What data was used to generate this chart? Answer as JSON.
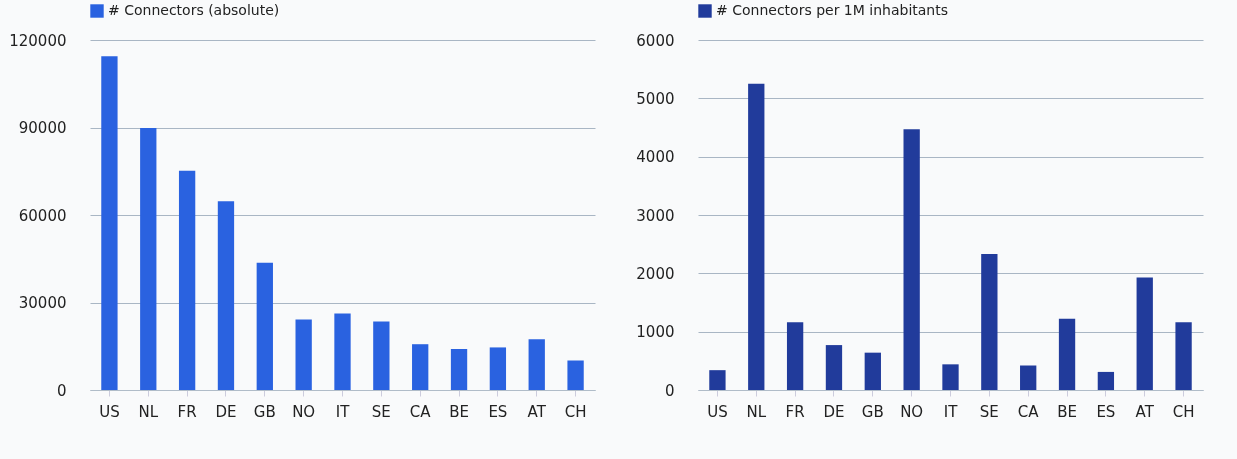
{
  "chart_data": [
    {
      "type": "bar",
      "categories": [
        "US",
        "NL",
        "FR",
        "DE",
        "GB",
        "NO",
        "IT",
        "SE",
        "CA",
        "BE",
        "ES",
        "AT",
        "CH"
      ],
      "series": [
        {
          "name": "# Connectors (absolute)",
          "color": "#2a62e0",
          "values": [
            114400,
            89800,
            75200,
            64700,
            43600,
            24200,
            26200,
            23500,
            15700,
            14100,
            14600,
            17400,
            10100
          ]
        }
      ],
      "ylim": [
        0,
        120000
      ],
      "yticks": [
        0,
        30000,
        60000,
        90000,
        120000
      ],
      "grid": "y",
      "legend": "top left"
    },
    {
      "type": "bar",
      "categories": [
        "US",
        "NL",
        "FR",
        "DE",
        "GB",
        "NO",
        "IT",
        "SE",
        "CA",
        "BE",
        "ES",
        "AT",
        "CH"
      ],
      "series": [
        {
          "name": "# Connectors per 1M inhabitants",
          "color": "#213b9b",
          "values": [
            340,
            5250,
            1160,
            770,
            640,
            4470,
            440,
            2330,
            420,
            1220,
            310,
            1930,
            1160
          ]
        }
      ],
      "ylim": [
        0,
        6000
      ],
      "yticks": [
        0,
        1000,
        2000,
        3000,
        4000,
        5000,
        6000
      ],
      "grid": "y",
      "legend": "top left"
    }
  ]
}
